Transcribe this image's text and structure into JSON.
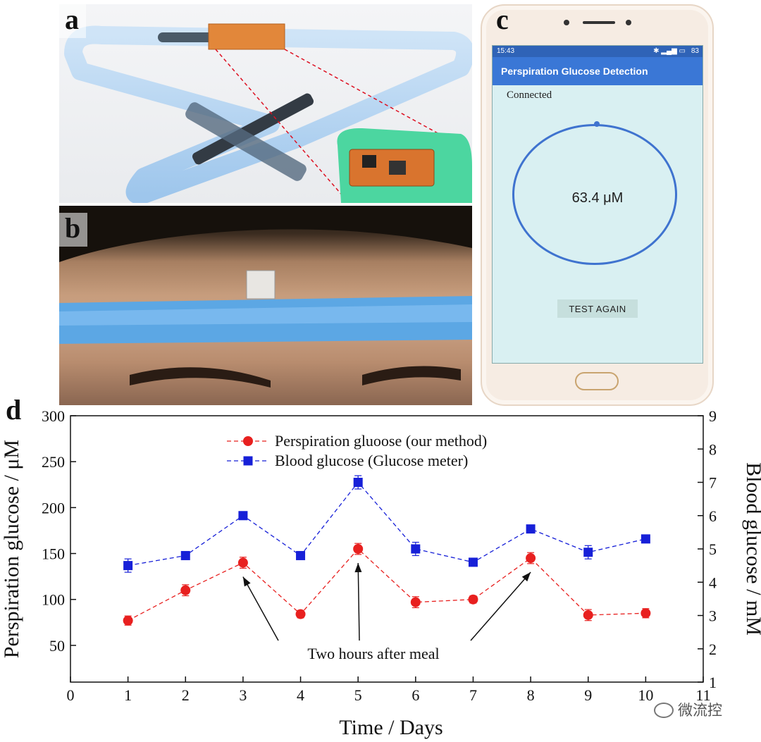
{
  "panels": {
    "a": {
      "label": "a"
    },
    "b": {
      "label": "b"
    },
    "c": {
      "label": "c"
    },
    "d": {
      "label": "d"
    }
  },
  "phone": {
    "status_time": "15:43",
    "status_right": "83",
    "app_title": "Perspiration Glucose Detection",
    "connection_status": "Connected",
    "reading": "63.4 μM",
    "test_button": "TEST AGAIN",
    "colors": {
      "app_bar": "#3a77d6",
      "status_bar": "#2f63b7",
      "ring": "#3f73cf",
      "screen": "#d9f0f2"
    }
  },
  "chart_data": {
    "type": "line",
    "xlabel": "Time / Days",
    "ylabel": "Perspiration glucose / μM",
    "y2label": "Blood glucose / mM",
    "xlim": [
      0,
      11
    ],
    "ylim": [
      10,
      300
    ],
    "y2lim": [
      1,
      9
    ],
    "x_ticks": [
      "0",
      "1",
      "2",
      "3",
      "4",
      "5",
      "6",
      "7",
      "8",
      "9",
      "10",
      "11"
    ],
    "y_ticks": [
      "50",
      "100",
      "150",
      "200",
      "250",
      "300"
    ],
    "y2_ticks": [
      "1",
      "2",
      "3",
      "4",
      "5",
      "6",
      "7",
      "8",
      "9"
    ],
    "series": [
      {
        "name": "Perspiration gluoose (our method)",
        "axis": "left",
        "color": "#e8201f",
        "marker": "circle",
        "x": [
          1,
          2,
          3,
          4,
          5,
          6,
          7,
          8,
          9,
          10
        ],
        "values": [
          77,
          110,
          140,
          84,
          155,
          97,
          100,
          145,
          83,
          85
        ],
        "errors": [
          5,
          6,
          6,
          4,
          6,
          6,
          4,
          6,
          6,
          5
        ]
      },
      {
        "name": "Blood glucose (Glucose meter)",
        "axis": "right",
        "color": "#1720d8",
        "marker": "square",
        "x": [
          1,
          2,
          3,
          4,
          5,
          6,
          7,
          8,
          9,
          10
        ],
        "values": [
          4.5,
          4.8,
          6.0,
          4.8,
          7.0,
          5.0,
          4.6,
          5.6,
          4.9,
          5.3
        ],
        "errors": [
          0.2,
          0.1,
          0.1,
          0.1,
          0.2,
          0.2,
          0.1,
          0.1,
          0.2,
          0.1
        ]
      }
    ],
    "legend_position": "top-center",
    "annotation": {
      "text": "Two hours after meal",
      "points": [
        3,
        5,
        8
      ]
    }
  },
  "watermark": "微流控"
}
